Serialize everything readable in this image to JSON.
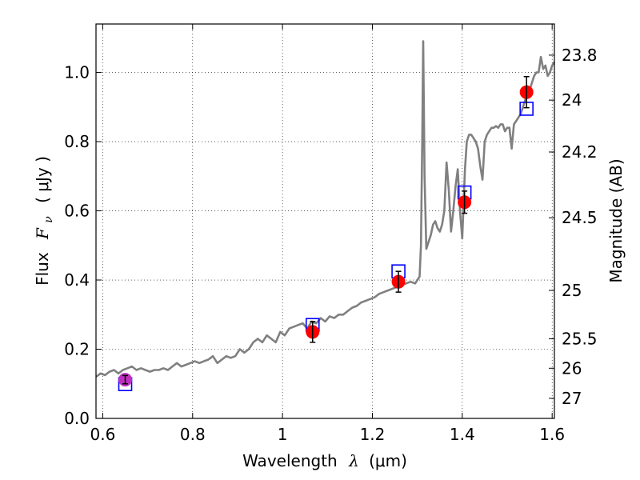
{
  "chart_data": {
    "type": "line",
    "xlabel_prefix": "Wavelength",
    "xlabel_symbol": "λ",
    "xlabel_unit": "(μm)",
    "ylabel_prefix": "Flux",
    "ylabel_symbol": "F",
    "ylabel_sub": "ν",
    "ylabel_unit": "( μJy )",
    "y2label": "Magnitude (AB)",
    "xlim": [
      0.585,
      1.605
    ],
    "ylim": [
      0.0,
      1.14
    ],
    "grid": true,
    "x_ticks": [
      {
        "value": 0.6,
        "label": "0.6"
      },
      {
        "value": 0.8,
        "label": "0.8"
      },
      {
        "value": 1.0,
        "label": "1"
      },
      {
        "value": 1.2,
        "label": "1.2"
      },
      {
        "value": 1.4,
        "label": "1.4"
      },
      {
        "value": 1.6,
        "label": "1.6"
      }
    ],
    "y_ticks": [
      {
        "value": 0.0,
        "label": "0.0"
      },
      {
        "value": 0.2,
        "label": "0.2"
      },
      {
        "value": 0.4,
        "label": "0.4"
      },
      {
        "value": 0.6,
        "label": "0.6"
      },
      {
        "value": 0.8,
        "label": "0.8"
      },
      {
        "value": 1.0,
        "label": "1.0"
      }
    ],
    "y2_ticks": [
      {
        "flux": 1.05,
        "label": "23.8"
      },
      {
        "flux": 0.92,
        "label": "24"
      },
      {
        "flux": 0.77,
        "label": "24.2"
      },
      {
        "flux": 0.58,
        "label": "24.5"
      },
      {
        "flux": 0.37,
        "label": "25"
      },
      {
        "flux": 0.23,
        "label": "25.5"
      },
      {
        "flux": 0.145,
        "label": "26"
      },
      {
        "flux": 0.058,
        "label": "27"
      }
    ],
    "spectrum": {
      "name": "model spectrum",
      "color": "#808080",
      "x": [
        0.585,
        0.595,
        0.605,
        0.615,
        0.625,
        0.635,
        0.645,
        0.655,
        0.665,
        0.675,
        0.685,
        0.695,
        0.705,
        0.715,
        0.725,
        0.735,
        0.745,
        0.755,
        0.765,
        0.775,
        0.785,
        0.795,
        0.805,
        0.815,
        0.825,
        0.835,
        0.845,
        0.855,
        0.865,
        0.875,
        0.885,
        0.895,
        0.905,
        0.915,
        0.925,
        0.935,
        0.945,
        0.955,
        0.965,
        0.975,
        0.985,
        0.995,
        1.005,
        1.015,
        1.025,
        1.035,
        1.045,
        1.055,
        1.065,
        1.075,
        1.085,
        1.095,
        1.105,
        1.115,
        1.125,
        1.135,
        1.145,
        1.155,
        1.165,
        1.175,
        1.185,
        1.195,
        1.205,
        1.215,
        1.225,
        1.235,
        1.245,
        1.255,
        1.265,
        1.275,
        1.285,
        1.295,
        1.3,
        1.305,
        1.308,
        1.311,
        1.313,
        1.316,
        1.32,
        1.325,
        1.33,
        1.335,
        1.34,
        1.345,
        1.35,
        1.355,
        1.36,
        1.365,
        1.37,
        1.375,
        1.38,
        1.385,
        1.39,
        1.395,
        1.4,
        1.403,
        1.406,
        1.41,
        1.415,
        1.42,
        1.425,
        1.43,
        1.435,
        1.44,
        1.445,
        1.45,
        1.455,
        1.46,
        1.465,
        1.47,
        1.475,
        1.48,
        1.485,
        1.49,
        1.495,
        1.5,
        1.505,
        1.51,
        1.515,
        1.52,
        1.525,
        1.53,
        1.535,
        1.54,
        1.545,
        1.55,
        1.555,
        1.56,
        1.565,
        1.57,
        1.575,
        1.58,
        1.585,
        1.59,
        1.595,
        1.6,
        1.605
      ],
      "y": [
        0.12,
        0.13,
        0.125,
        0.135,
        0.14,
        0.13,
        0.14,
        0.145,
        0.15,
        0.14,
        0.145,
        0.14,
        0.135,
        0.14,
        0.14,
        0.145,
        0.14,
        0.15,
        0.16,
        0.15,
        0.155,
        0.16,
        0.165,
        0.16,
        0.165,
        0.17,
        0.18,
        0.16,
        0.17,
        0.18,
        0.175,
        0.18,
        0.2,
        0.19,
        0.2,
        0.22,
        0.23,
        0.22,
        0.24,
        0.23,
        0.22,
        0.25,
        0.24,
        0.26,
        0.265,
        0.27,
        0.275,
        0.26,
        0.28,
        0.275,
        0.29,
        0.28,
        0.295,
        0.29,
        0.3,
        0.3,
        0.31,
        0.32,
        0.325,
        0.335,
        0.34,
        0.345,
        0.35,
        0.36,
        0.365,
        0.37,
        0.375,
        0.38,
        0.385,
        0.39,
        0.395,
        0.39,
        0.4,
        0.41,
        0.5,
        0.8,
        1.09,
        0.7,
        0.49,
        0.51,
        0.53,
        0.56,
        0.57,
        0.55,
        0.54,
        0.56,
        0.6,
        0.74,
        0.66,
        0.54,
        0.6,
        0.67,
        0.72,
        0.6,
        0.52,
        0.62,
        0.72,
        0.8,
        0.82,
        0.82,
        0.81,
        0.8,
        0.78,
        0.73,
        0.69,
        0.8,
        0.82,
        0.83,
        0.84,
        0.84,
        0.845,
        0.84,
        0.85,
        0.85,
        0.83,
        0.84,
        0.84,
        0.78,
        0.85,
        0.86,
        0.87,
        0.88,
        0.9,
        0.92,
        0.96,
        0.95,
        0.97,
        0.99,
        1.0,
        1.0,
        1.045,
        1.01,
        1.02,
        0.99,
        1.0,
        1.02,
        1.03
      ]
    },
    "photometry": [
      {
        "x": 0.65,
        "y": 0.112,
        "yerr": 0.012,
        "model": 0.099,
        "color": "#bf2fbf"
      },
      {
        "x": 1.067,
        "y": 0.25,
        "yerr": 0.03,
        "model": 0.27,
        "color": "#ff0000"
      },
      {
        "x": 1.258,
        "y": 0.395,
        "yerr": 0.03,
        "model": 0.425,
        "color": "#ff0000"
      },
      {
        "x": 1.405,
        "y": 0.625,
        "yerr": 0.032,
        "model": 0.653,
        "color": "#ff0000"
      },
      {
        "x": 1.543,
        "y": 0.943,
        "yerr": 0.045,
        "model": 0.895,
        "color": "#ff0000"
      }
    ],
    "model_marker_color": "#0000ff",
    "errorbar_color": "#000000"
  }
}
